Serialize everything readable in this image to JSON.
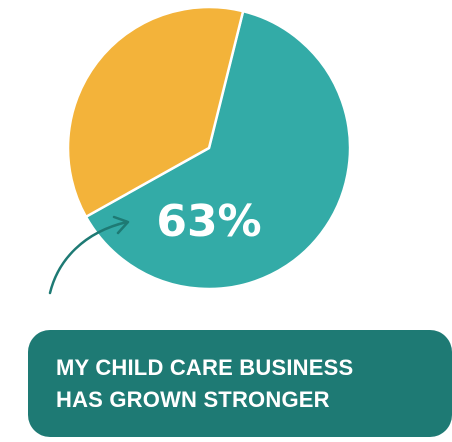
{
  "chart_data": {
    "type": "pie",
    "slices": [
      {
        "label": "My child care business has grown stronger",
        "value": 63,
        "color": "#33aba7"
      },
      {
        "label": "",
        "value": 37,
        "color": "#f3b33a"
      }
    ],
    "highlight_label": "63%",
    "start_angle_deg": 14,
    "legend": "none",
    "grid": false
  },
  "callout": {
    "line1": "MY CHILD CARE BUSINESS",
    "line2": "HAS GROWN STRONGER",
    "color": "#1e7a74",
    "arrow_color": "#1e7a74"
  }
}
